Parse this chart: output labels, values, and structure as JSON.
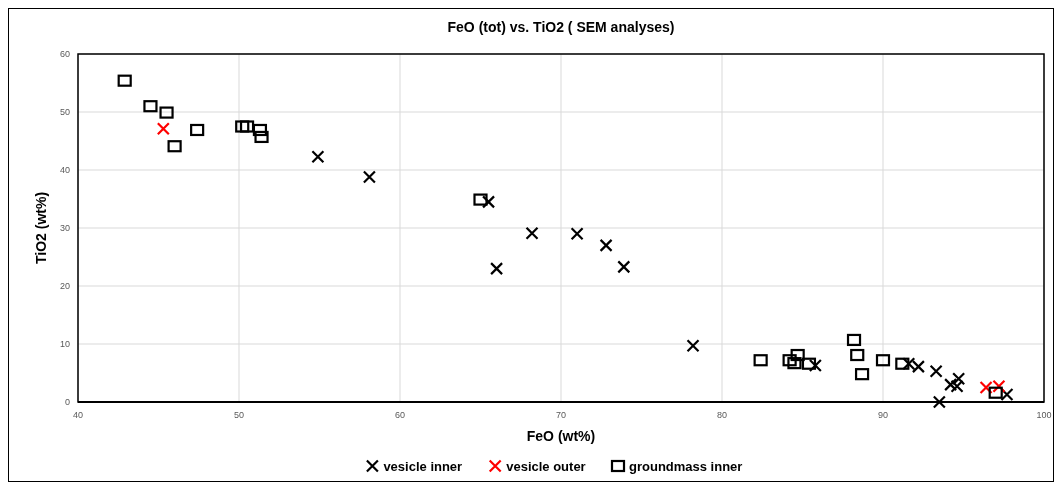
{
  "chart_data": {
    "type": "scatter",
    "title": "FeO (tot) vs. TiO2  ( SEM analyses)",
    "xlabel": "FeO (wt%)",
    "ylabel": "TiO2 (wt%)",
    "xlim": [
      40,
      100
    ],
    "xticks": [
      40,
      50,
      60,
      70,
      80,
      90,
      100
    ],
    "ylim": [
      0,
      60
    ],
    "yticks": [
      0,
      10,
      20,
      30,
      40,
      50,
      60
    ],
    "grid": true,
    "legend": "bottom",
    "series": [
      {
        "name": "vesicle inner",
        "color": "#000000",
        "marker": "cross",
        "x": [
          54.9,
          58.1,
          65.5,
          66.0,
          68.2,
          71.0,
          72.8,
          73.9,
          78.2,
          85.8,
          91.6,
          92.2,
          93.3,
          93.5,
          94.2,
          94.7,
          94.6,
          97.7
        ],
        "values": [
          42.3,
          38.8,
          34.5,
          23.0,
          29.1,
          29.0,
          27.0,
          23.3,
          9.7,
          6.3,
          6.6,
          6.1,
          5.3,
          0.0,
          3.0,
          4.0,
          2.7,
          1.3
        ]
      },
      {
        "name": "vesicle outer",
        "color": "#ff0000",
        "marker": "cross",
        "x": [
          45.3,
          96.4,
          97.2
        ],
        "values": [
          47.1,
          2.5,
          2.7
        ]
      },
      {
        "name": "groundmass inner",
        "color": "#000000",
        "marker": "square",
        "x": [
          42.9,
          44.5,
          45.5,
          47.4,
          46.0,
          50.2,
          50.5,
          51.3,
          51.4,
          65.0,
          82.4,
          84.2,
          84.7,
          84.5,
          85.4,
          88.2,
          88.4,
          88.7,
          90.0,
          91.2,
          97.0
        ],
        "values": [
          55.4,
          51.0,
          49.9,
          46.9,
          44.1,
          47.5,
          47.5,
          46.9,
          45.7,
          34.9,
          7.2,
          7.2,
          8.1,
          6.7,
          6.6,
          10.7,
          8.1,
          4.8,
          7.2,
          6.6,
          1.6
        ]
      }
    ]
  }
}
